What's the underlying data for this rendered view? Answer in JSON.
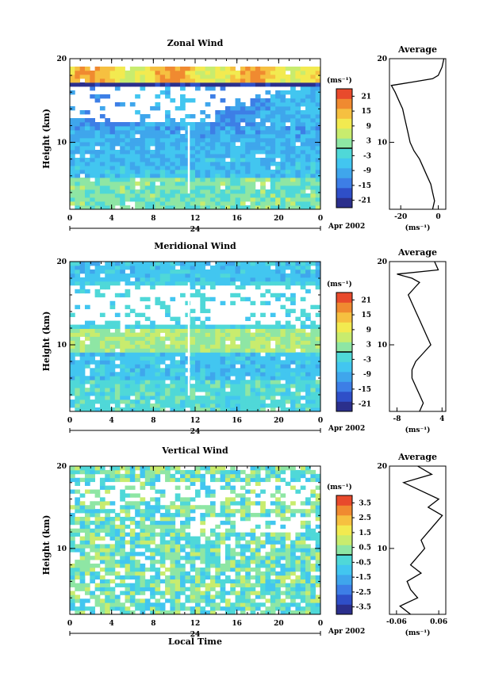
{
  "chart_data": [
    {
      "type": "heatmap",
      "title": "Zonal Wind",
      "ylabel": "Height (km)",
      "xlabel": "",
      "x_ticks": [
        "0",
        "4",
        "8",
        "12",
        "16",
        "20",
        "0"
      ],
      "x_range": [
        0,
        24
      ],
      "y_ticks": [
        "20",
        "10"
      ],
      "y_range": [
        2,
        20
      ],
      "date_marker": "24",
      "date_label": "Apr 2002",
      "colorbar": {
        "unit_label": "(ms⁻¹)",
        "ticks": [
          "21",
          "15",
          "9",
          "3",
          "-3",
          "-9",
          "-15",
          "-21"
        ],
        "range": [
          -24,
          24
        ],
        "zero_line": 0
      },
      "profile": {
        "title": "Average",
        "x_ticks": [
          "-20",
          "0"
        ],
        "x_range": [
          -26,
          4
        ],
        "xlabel": "(ms⁻¹)",
        "y_ticks": [
          "20",
          "10"
        ],
        "y_range": [
          2,
          20
        ],
        "points": [
          [
            -3,
            2
          ],
          [
            -2,
            3
          ],
          [
            -3,
            4
          ],
          [
            -4,
            5
          ],
          [
            -6,
            6
          ],
          [
            -8,
            7
          ],
          [
            -10,
            8
          ],
          [
            -13,
            9
          ],
          [
            -15,
            10
          ],
          [
            -16,
            11
          ],
          [
            -17,
            12
          ],
          [
            -18,
            13
          ],
          [
            -19,
            14
          ],
          [
            -21,
            15
          ],
          [
            -23,
            16
          ],
          [
            -25,
            16.8
          ],
          [
            -14,
            17.2
          ],
          [
            -3,
            17.6
          ],
          [
            0,
            18
          ],
          [
            2,
            19
          ],
          [
            3,
            20
          ]
        ]
      }
    },
    {
      "type": "heatmap",
      "title": "Meridional Wind",
      "ylabel": "Height (km)",
      "xlabel": "",
      "x_ticks": [
        "0",
        "4",
        "8",
        "12",
        "16",
        "20",
        "0"
      ],
      "x_range": [
        0,
        24
      ],
      "y_ticks": [
        "20",
        "10"
      ],
      "y_range": [
        2,
        20
      ],
      "date_marker": "24",
      "date_label": "Apr 2002",
      "colorbar": {
        "unit_label": "(ms⁻¹)",
        "ticks": [
          "21",
          "15",
          "9",
          "3",
          "-3",
          "-9",
          "-15",
          "-21"
        ],
        "range": [
          -24,
          24
        ],
        "zero_line": 0
      },
      "profile": {
        "title": "Average",
        "x_ticks": [
          "-8",
          "4"
        ],
        "x_range": [
          -10,
          5
        ],
        "xlabel": "(ms⁻¹)",
        "y_ticks": [
          "20",
          "10"
        ],
        "y_range": [
          2,
          20
        ],
        "points": [
          [
            -2,
            2
          ],
          [
            -1,
            3
          ],
          [
            -2,
            4
          ],
          [
            -3,
            5
          ],
          [
            -4,
            6
          ],
          [
            -4,
            7
          ],
          [
            -3,
            8
          ],
          [
            -1,
            9
          ],
          [
            1,
            10
          ],
          [
            0,
            11
          ],
          [
            -1,
            12
          ],
          [
            -2,
            13
          ],
          [
            -3,
            14
          ],
          [
            -4,
            15
          ],
          [
            -5,
            16
          ],
          [
            -3,
            17
          ],
          [
            -2,
            17.5
          ],
          [
            -4,
            18
          ],
          [
            -8,
            18.5
          ],
          [
            3,
            19
          ],
          [
            2,
            20
          ]
        ]
      }
    },
    {
      "type": "heatmap",
      "title": "Vertical Wind",
      "ylabel": "Height (km)",
      "xlabel": "Local Time",
      "x_ticks": [
        "0",
        "4",
        "8",
        "12",
        "16",
        "20",
        "0"
      ],
      "x_range": [
        0,
        24
      ],
      "y_ticks": [
        "20",
        "10"
      ],
      "y_range": [
        2,
        20
      ],
      "date_marker": "24",
      "date_label": "Apr 2002",
      "colorbar": {
        "unit_label": "(ms⁻¹)",
        "ticks": [
          "3.5",
          "2.5",
          "1.5",
          "0.5",
          "-0.5",
          "-1.5",
          "-2.5",
          "-3.5"
        ],
        "range": [
          -4,
          4
        ],
        "zero_line": 0
      },
      "profile": {
        "title": "Average",
        "x_ticks": [
          "-0.06",
          "0.06"
        ],
        "x_range": [
          -0.08,
          0.08
        ],
        "xlabel": "(ms⁻¹)",
        "y_ticks": [
          "20",
          "10"
        ],
        "y_range": [
          2,
          20
        ],
        "points": [
          [
            -0.02,
            2
          ],
          [
            -0.05,
            3
          ],
          [
            0.0,
            4
          ],
          [
            -0.02,
            5
          ],
          [
            -0.03,
            6
          ],
          [
            0.01,
            7
          ],
          [
            -0.02,
            8
          ],
          [
            0.0,
            9
          ],
          [
            0.02,
            10
          ],
          [
            0.01,
            11
          ],
          [
            0.03,
            12
          ],
          [
            0.05,
            13
          ],
          [
            0.07,
            14
          ],
          [
            0.03,
            15
          ],
          [
            0.06,
            16
          ],
          [
            0.01,
            17
          ],
          [
            -0.04,
            18
          ],
          [
            0.04,
            19
          ],
          [
            0.0,
            20
          ]
        ]
      }
    }
  ]
}
